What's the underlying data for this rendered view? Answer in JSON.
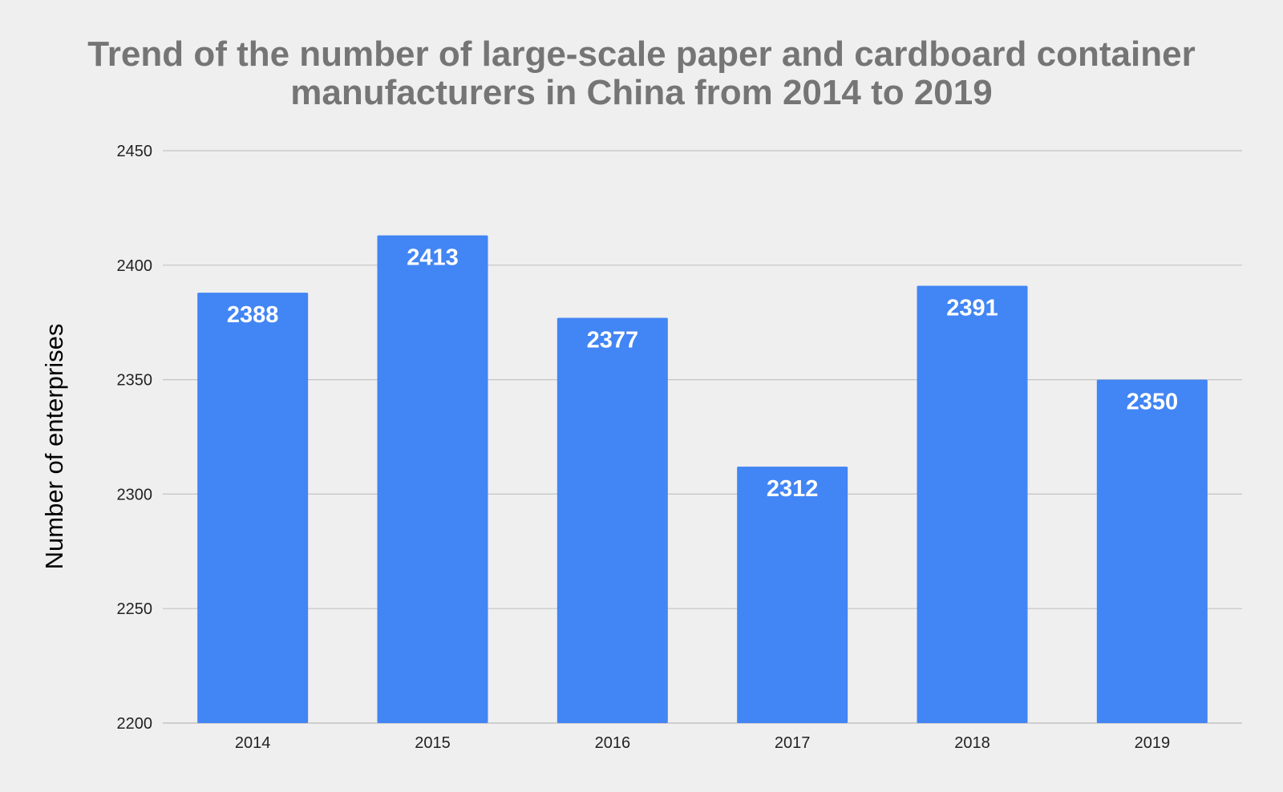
{
  "chart_data": {
    "type": "bar",
    "title": "Trend of the number of large-scale paper and cardboard container manufacturers in China from 2014 to 2019",
    "xlabel": "",
    "ylabel": "Number of enterprises",
    "categories": [
      "2014",
      "2015",
      "2016",
      "2017",
      "2018",
      "2019"
    ],
    "values": [
      2388,
      2413,
      2377,
      2312,
      2391,
      2350
    ],
    "data_labels": [
      "2388",
      "2413",
      "2377",
      "2312",
      "2391",
      "2350"
    ],
    "ylim": [
      2200,
      2450
    ],
    "y_ticks": [
      2200,
      2250,
      2300,
      2350,
      2400,
      2450
    ],
    "grid": true,
    "legend": "none",
    "bar_color": "#4285f4",
    "grid_color": "#c4c4c4",
    "title_color": "#757575"
  }
}
